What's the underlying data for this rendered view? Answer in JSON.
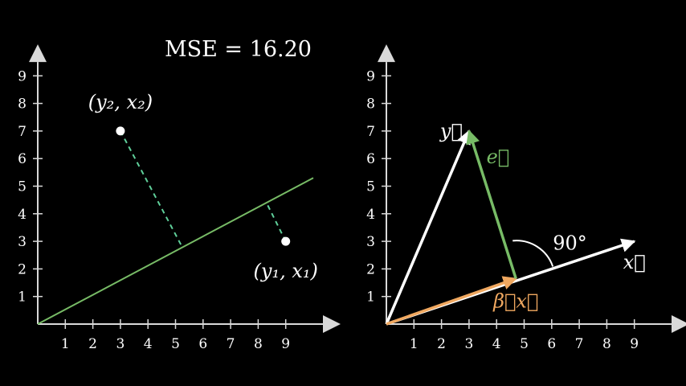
{
  "title": "MSE = 16.20",
  "colors": {
    "background": "#000000",
    "axis": "#d9d9d9",
    "regression_line": "#77bb66",
    "residual": "#5fcf9a",
    "vector_y": "#ffffff",
    "vector_x": "#ffffff",
    "vector_e": "#77bb66",
    "vector_bx": "#f0a860"
  },
  "left_plot": {
    "x_ticks": [
      "1",
      "2",
      "3",
      "4",
      "5",
      "6",
      "7",
      "8",
      "9"
    ],
    "y_ticks": [
      "1",
      "2",
      "3",
      "4",
      "5",
      "6",
      "7",
      "8",
      "9"
    ],
    "regression_line": {
      "from": [
        0,
        0
      ],
      "to": [
        10,
        5.3
      ]
    },
    "points": [
      {
        "label": "(y₂, x₂)",
        "x": 3,
        "y": 7,
        "foot": [
          5.25,
          2.78
        ]
      },
      {
        "label": "(y₁, x₁)",
        "x": 9,
        "y": 3,
        "foot": [
          8.3,
          4.4
        ]
      }
    ]
  },
  "right_plot": {
    "x_ticks": [
      "1",
      "2",
      "3",
      "4",
      "5",
      "6",
      "7",
      "8",
      "9"
    ],
    "y_ticks": [
      "1",
      "2",
      "3",
      "4",
      "5",
      "6",
      "7",
      "8",
      "9"
    ],
    "vectors": [
      {
        "name": "y",
        "label": "y⃗",
        "from": [
          0,
          0
        ],
        "to": [
          3,
          7
        ]
      },
      {
        "name": "x",
        "label": "x⃗",
        "from": [
          0,
          0
        ],
        "to": [
          9,
          3
        ]
      },
      {
        "name": "bx",
        "label": "β⃗x⃗",
        "from": [
          0,
          0
        ],
        "to": [
          4.7,
          1.65
        ]
      },
      {
        "name": "e",
        "label": "e⃗",
        "from": [
          4.7,
          1.65
        ],
        "to": [
          3,
          7
        ]
      }
    ],
    "angle_label": "90°"
  }
}
